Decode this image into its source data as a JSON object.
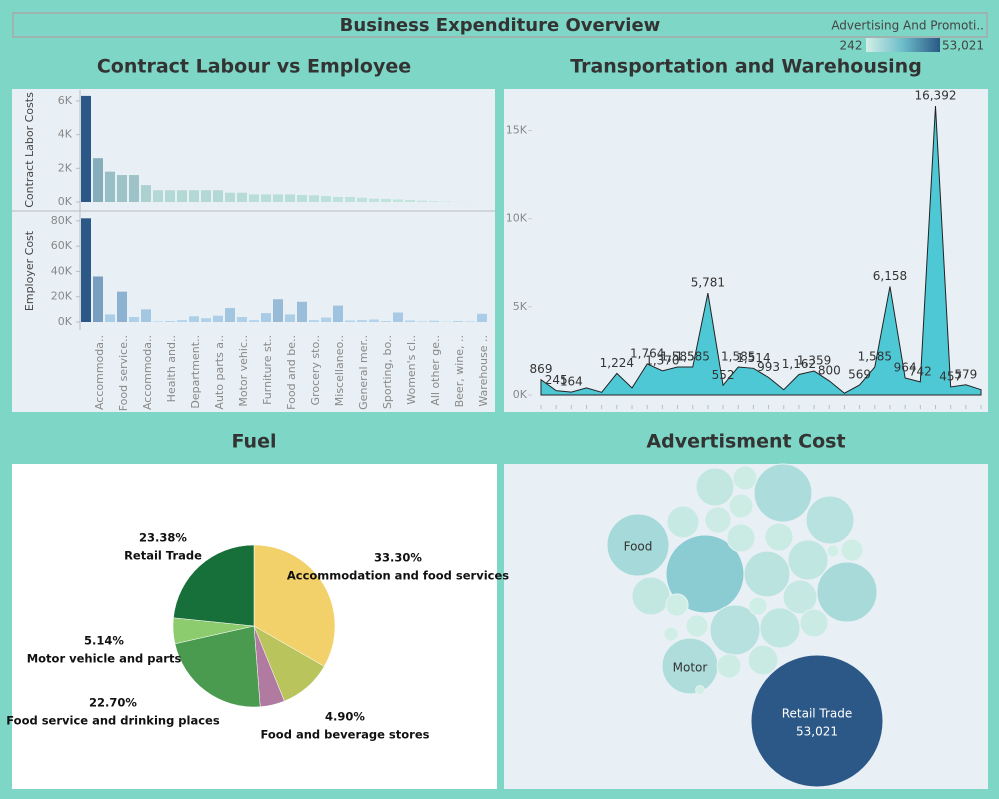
{
  "title": "Business Expenditure Overview",
  "legend": {
    "title": "Advertising And Promoti..",
    "min": {
      "value": 242,
      "label": "242"
    },
    "max": {
      "value": 53021,
      "label": "53,021"
    },
    "colors": [
      "#d2efe6",
      "#6cbcc9",
      "#2b5886"
    ]
  },
  "chart_data": [
    {
      "type": "bar",
      "title": "Contract Labour vs Employee",
      "categories": [
        "Accommoda..",
        null,
        "Food service..",
        null,
        "Accommoda..",
        null,
        "Health and..",
        null,
        "Department..",
        null,
        "Auto parts a..",
        null,
        "Motor vehic..",
        null,
        "Furniture st..",
        null,
        "Food and be..",
        null,
        "Grocery sto..",
        null,
        "Miscellaneo..",
        null,
        "General mer..",
        null,
        "Sporting, bo..",
        null,
        "Women's cl..",
        null,
        "All other ge..",
        null,
        "Beer, wine, ..",
        null,
        "Warehouse ..",
        null
      ],
      "series": [
        {
          "name": "Contract Labor Costs",
          "color_range": [
            "#c4e8df",
            "#2b5886"
          ],
          "values": [
            6300,
            2600,
            1800,
            1600,
            1600,
            1000,
            700,
            700,
            700,
            700,
            700,
            700,
            550,
            550,
            450,
            450,
            450,
            450,
            420,
            400,
            350,
            300,
            300,
            250,
            200,
            180,
            150,
            120,
            80,
            50,
            30,
            10,
            5,
            0
          ],
          "ylim": [
            0,
            6650
          ],
          "yticks": [
            {
              "value": 0,
              "label": "0K"
            },
            {
              "value": 2000,
              "label": "2K"
            },
            {
              "value": 4000,
              "label": "4K"
            },
            {
              "value": 6000,
              "label": "6K"
            }
          ]
        },
        {
          "name": "Employer Cost",
          "color_range": [
            "#b5d6ee",
            "#2b5886"
          ],
          "values": [
            82000,
            36000,
            6000,
            24000,
            4000,
            10000,
            500,
            800,
            1500,
            4500,
            3000,
            5000,
            11000,
            4000,
            1500,
            7000,
            18000,
            6000,
            16000,
            1500,
            3500,
            13000,
            1200,
            1500,
            2000,
            800,
            7500,
            1200,
            500,
            1000,
            300,
            800,
            500,
            6500
          ],
          "ylim": [
            0,
            87000
          ],
          "yticks": [
            {
              "value": 0,
              "label": "0K"
            },
            {
              "value": 20000,
              "label": "20K"
            },
            {
              "value": 40000,
              "label": "40K"
            },
            {
              "value": 60000,
              "label": "60K"
            },
            {
              "value": 80000,
              "label": "80K"
            }
          ]
        }
      ]
    },
    {
      "type": "area",
      "title": "Transportation and Warehousing",
      "color": "#4fc8d6",
      "categories": [
        null,
        null,
        null,
        null,
        null,
        null,
        null,
        null,
        null,
        null,
        null,
        null,
        null,
        null,
        null,
        null,
        null,
        null,
        null,
        null,
        null,
        null,
        null,
        null,
        null,
        null,
        null,
        null,
        null,
        null
      ],
      "values": [
        869,
        245,
        164,
        400,
        150,
        1224,
        400,
        1764,
        1370,
        1585,
        1585,
        5781,
        552,
        1585,
        1514,
        993,
        300,
        1162,
        1359,
        800,
        100,
        569,
        1585,
        6158,
        964,
        742,
        16392,
        457,
        579,
        300
      ],
      "value_labels": [
        "869",
        "245",
        "164",
        null,
        null,
        "1,224",
        null,
        "1,764",
        "1,370",
        "1,585",
        "1,585",
        "5,781",
        "552",
        "1,585",
        "1,514",
        "993",
        null,
        "1,162",
        "1,359",
        "800",
        null,
        "569",
        "1,585",
        "6,158",
        "964",
        "742",
        "16,392",
        "457",
        "579",
        null
      ],
      "ylim": [
        0,
        17300
      ],
      "yticks": [
        {
          "value": 0,
          "label": "0K"
        },
        {
          "value": 5000,
          "label": "5K"
        },
        {
          "value": 10000,
          "label": "10K"
        },
        {
          "value": 15000,
          "label": "15K"
        }
      ]
    },
    {
      "type": "pie",
      "title": "Fuel",
      "categories": [
        "Accommodation and food services",
        null,
        "Food and beverage stores",
        "Food service and drinking places",
        "Motor vehicle and parts",
        "Retail Trade"
      ],
      "values": [
        33.3,
        10.58,
        4.9,
        22.7,
        5.14,
        23.38
      ],
      "value_labels": [
        "33.30%",
        null,
        "4.90%",
        "22.70%",
        "5.14%",
        "23.38%"
      ],
      "colors": [
        "#f2d16b",
        "#b9c45c",
        "#b07aa1",
        "#4a9b4f",
        "#8ccc6e",
        "#17703a"
      ]
    },
    {
      "type": "bubble",
      "title": "Advertisment Cost",
      "categories": [
        "Retail Trade",
        null,
        "Food",
        null,
        null,
        "Motor",
        null,
        null,
        null,
        null,
        null,
        null,
        null,
        null,
        null,
        null,
        null,
        null,
        null,
        null,
        null,
        null,
        null,
        null,
        null,
        null,
        null,
        null,
        null,
        null
      ],
      "values": [
        53021,
        18500,
        11700,
        11000,
        10200,
        9500,
        7000,
        7600,
        6400,
        4400,
        4900,
        4900,
        4400,
        3500,
        2700,
        3100,
        2400,
        2400,
        1750,
        2100,
        1750,
        2400,
        1500,
        1750,
        1500,
        1000,
        1500,
        440,
        600,
        242
      ],
      "value_labels": [
        "53,021",
        null,
        null,
        null,
        null,
        null,
        null,
        null,
        null,
        null,
        null,
        null,
        null,
        null,
        null,
        null,
        null,
        null,
        null,
        null,
        null,
        null,
        null,
        null,
        null,
        null,
        null,
        null,
        null,
        null
      ]
    }
  ]
}
